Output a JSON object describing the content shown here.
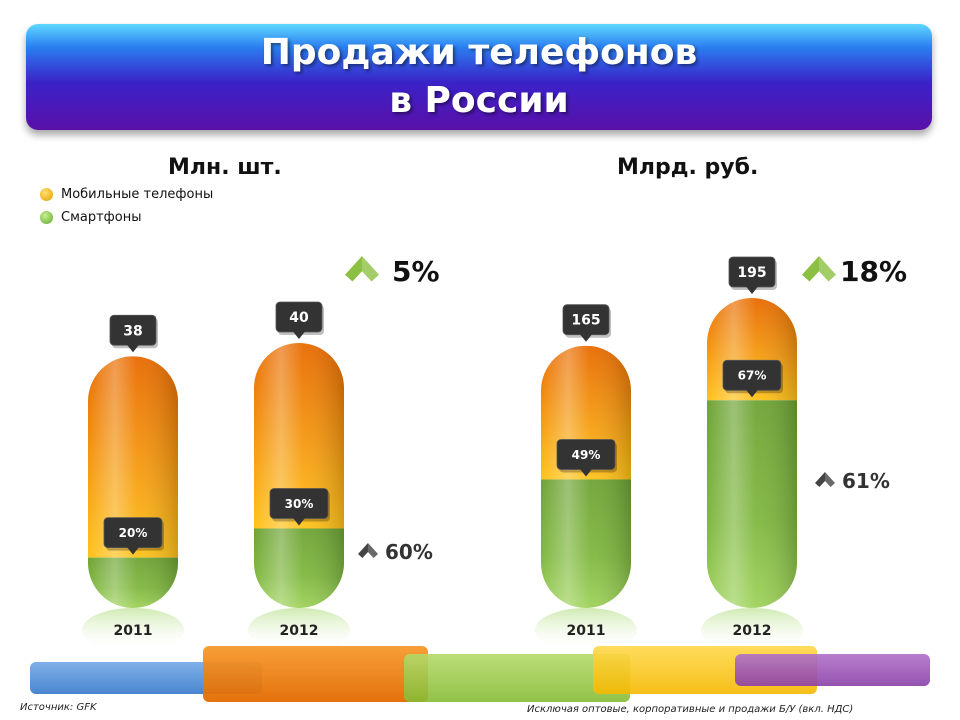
{
  "title_line1": "Продажи телефонов",
  "title_line2": "в России",
  "legend": [
    {
      "label": "Мобильные телефоны",
      "color": "#f0a010"
    },
    {
      "label": "Смартфоны",
      "color": "#7cc23a"
    }
  ],
  "source": "Источник: GFK",
  "footnote": "Исключая оптовые, корпоративные  и продажи Б/У (вкл. НДС)",
  "colors": {
    "mobile": "#f08a10",
    "smartphone": "#7bb83e",
    "callout": "#333333",
    "arrow": "#8cc043"
  },
  "chart_data": [
    {
      "type": "bar",
      "title": "Млн. шт.",
      "categories": [
        "2011",
        "2012"
      ],
      "totals": [
        38,
        40
      ],
      "smartphone_share_pct": [
        20,
        30
      ],
      "total_labels": [
        "38",
        "40"
      ],
      "share_labels": [
        "20%",
        "30%"
      ],
      "total_growth": "5%",
      "smartphone_growth": "60%"
    },
    {
      "type": "bar",
      "title": "Млрд. руб.",
      "categories": [
        "2011",
        "2012"
      ],
      "totals": [
        165,
        195
      ],
      "smartphone_share_pct": [
        49,
        67
      ],
      "total_labels": [
        "165",
        "195"
      ],
      "share_labels": [
        "49%",
        "67%"
      ],
      "total_growth": "18%",
      "smartphone_growth": "61%"
    }
  ]
}
